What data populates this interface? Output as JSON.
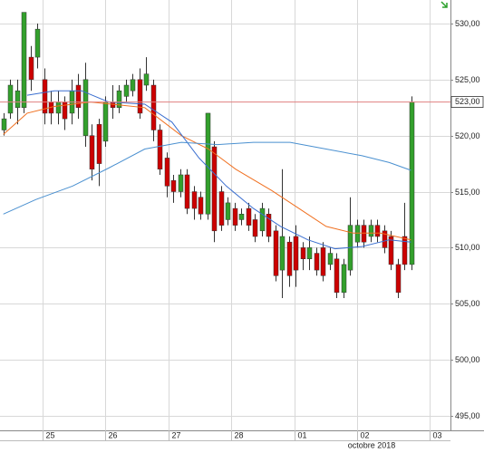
{
  "chart_data": {
    "type": "candlestick",
    "xlim": [
      -0.5,
      65.8
    ],
    "xticks": [
      {
        "value": 5.8,
        "label": "25"
      },
      {
        "value": 15,
        "label": "26"
      },
      {
        "value": 24.3,
        "label": "27"
      },
      {
        "value": 33.5,
        "label": "28"
      },
      {
        "value": 42.9,
        "label": "01"
      },
      {
        "value": 52.1,
        "label": "02"
      },
      {
        "value": 62.7,
        "label": "03"
      }
    ],
    "x_label_month": "octobre 2018",
    "ylim": [
      493.7,
      532.1
    ],
    "yticks": [
      {
        "value": 495,
        "label": "495,00"
      },
      {
        "value": 500,
        "label": "500,00"
      },
      {
        "value": 505,
        "label": "505,00"
      },
      {
        "value": 510,
        "label": "510,00"
      },
      {
        "value": 515,
        "label": "515,00"
      },
      {
        "value": 520,
        "label": "520,00"
      },
      {
        "value": 525,
        "label": "525,00"
      },
      {
        "value": 530,
        "label": "530,00"
      }
    ],
    "grid": true,
    "up_color": "#33a02c",
    "down_color": "#cc0000",
    "open": [
      520.5,
      522,
      522.5,
      522.5,
      527,
      527,
      525,
      523,
      522,
      523,
      522,
      524.5,
      520,
      520,
      521,
      519.5,
      523,
      522.5,
      523.5,
      524,
      525,
      524.5,
      524.5,
      520.5,
      518,
      516,
      515,
      516.5,
      515,
      514.5,
      513,
      519,
      515,
      512.5,
      513.5,
      512.5,
      513.5,
      512.5,
      511.5,
      513,
      511.5,
      508,
      510.5,
      511,
      510,
      509,
      509.5,
      510,
      508.5,
      509,
      506,
      508,
      510.5,
      512,
      511,
      512,
      511.5,
      511,
      508.5,
      511,
      508.5
    ],
    "high": [
      522,
      525,
      525,
      531,
      528,
      530,
      526,
      524,
      524,
      523.5,
      525,
      525.5,
      526.5,
      521,
      521.5,
      523.5,
      524.5,
      524.5,
      525,
      525.5,
      526,
      527,
      525,
      521,
      518.5,
      516.5,
      517,
      517,
      515.5,
      515,
      522,
      519.5,
      515.5,
      514.5,
      514,
      513.5,
      514,
      513,
      514,
      513.5,
      512,
      517,
      511,
      512,
      510.5,
      511,
      510,
      510.5,
      510,
      509.5,
      509,
      514.5,
      512.5,
      512.5,
      512.5,
      512.5,
      512,
      511.5,
      509,
      514,
      523.5
    ],
    "low": [
      520,
      521.5,
      521,
      522,
      524,
      526,
      521,
      521,
      521,
      520.5,
      521,
      521.5,
      519,
      516,
      515.5,
      519,
      521.5,
      522,
      523,
      523.5,
      521.5,
      524,
      519.5,
      516.5,
      514.5,
      514,
      514.5,
      513,
      512.5,
      512.5,
      512.5,
      510.5,
      511.5,
      512,
      511.5,
      512,
      511.5,
      510.5,
      511,
      510.5,
      507,
      505.5,
      506.5,
      506.5,
      508,
      508,
      507.5,
      507,
      508,
      505.5,
      505.5,
      507.5,
      510,
      510,
      510.5,
      510.5,
      509.5,
      508,
      505.5,
      508,
      508
    ],
    "close": [
      521.5,
      524.5,
      524,
      531,
      525,
      529.5,
      522,
      522,
      523,
      521.5,
      524,
      522.5,
      525,
      517,
      517.5,
      523,
      522.5,
      524,
      524.5,
      525,
      522,
      525.5,
      520.5,
      517,
      515.5,
      515,
      516.5,
      513.5,
      513.5,
      513,
      522,
      511.5,
      512,
      514,
      512,
      513,
      512,
      511,
      513.5,
      511,
      507.5,
      511,
      507.5,
      508,
      509,
      510,
      508,
      507.5,
      509.5,
      506,
      508.5,
      512,
      512,
      510.5,
      512,
      511,
      510,
      508.5,
      506,
      508.5,
      523
    ],
    "series": [
      {
        "color": "#f07020",
        "x": [
          0,
          3.5,
          7.5,
          12.8,
          20.8,
          26.2,
          30.2,
          34.2,
          39.5,
          43.5,
          47.5,
          51.5,
          55.5,
          60
        ],
        "values": [
          520.1,
          522,
          522.6,
          523,
          522.5,
          520,
          518.8,
          517,
          515.1,
          513.5,
          511.9,
          511.3,
          511.3,
          510.7
        ]
      },
      {
        "color": "#3b6fd0",
        "x": [
          3.5,
          7.5,
          11.5,
          15.5,
          20.8,
          24.8,
          28.8,
          32.8,
          36.8,
          40.8,
          44.8,
          48.8,
          52.8,
          56.8,
          60
        ],
        "values": [
          523.6,
          524,
          524,
          523,
          522.8,
          521.2,
          518,
          515.5,
          513.5,
          511.9,
          510.7,
          509.9,
          510.1,
          510.7,
          510.5
        ]
      },
      {
        "color": "#4a90d0",
        "x": [
          0,
          4.8,
          10.2,
          15.5,
          20.8,
          26.2,
          31.5,
          36.8,
          42.2,
          47.5,
          52.8,
          56.8,
          60
        ],
        "values": [
          513,
          514.3,
          515.5,
          517.1,
          518.8,
          519.4,
          519.2,
          519.4,
          519.4,
          518.8,
          518.2,
          517.6,
          516.9
        ]
      }
    ],
    "last_price": {
      "value": 523,
      "label": "523,00"
    },
    "last_price_color": "#e08080"
  }
}
